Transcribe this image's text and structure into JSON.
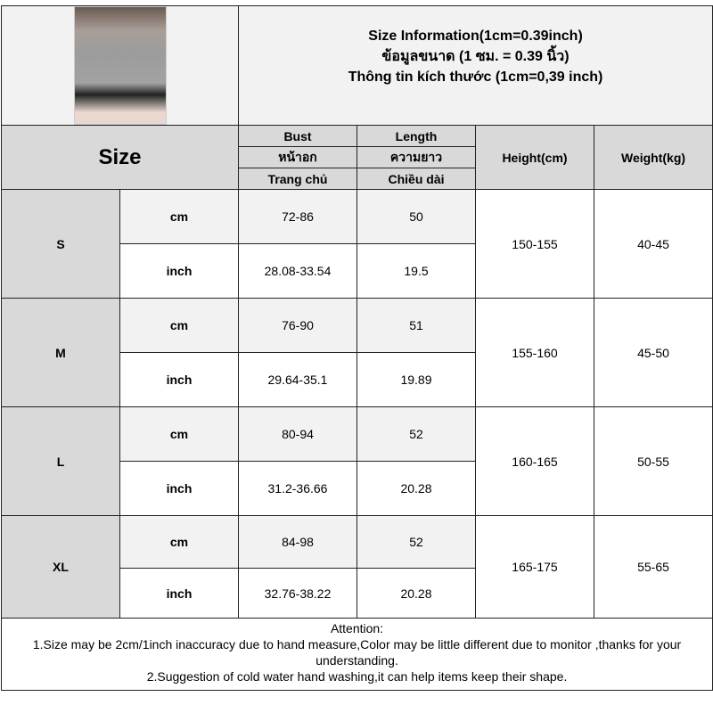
{
  "header": {
    "title_lines": [
      "Size Information(1cm=0.39inch)",
      "ข้อมูลขนาด (1 ซม. = 0.39 นิ้ว)",
      "Thông tin kích thước (1cm=0,39 inch)"
    ],
    "image": "model-photo"
  },
  "columns": {
    "size": "Size",
    "bust": [
      "Bust",
      "หน้าอก",
      "Trang chủ"
    ],
    "length": [
      "Length",
      "ความยาว",
      "Chiều dài"
    ],
    "height": "Height(cm)",
    "weight": "Weight(kg)"
  },
  "rows": [
    {
      "size": "S",
      "cm": {
        "unit": "cm",
        "bust": "72-86",
        "length": "50"
      },
      "inch": {
        "unit": "inch",
        "bust": "28.08-33.54",
        "length": "19.5"
      },
      "height": "150-155",
      "weight": "40-45"
    },
    {
      "size": "M",
      "cm": {
        "unit": "cm",
        "bust": "76-90",
        "length": "51"
      },
      "inch": {
        "unit": "inch",
        "bust": "29.64-35.1",
        "length": "19.89"
      },
      "height": "155-160",
      "weight": "45-50"
    },
    {
      "size": "L",
      "cm": {
        "unit": "cm",
        "bust": "80-94",
        "length": "52"
      },
      "inch": {
        "unit": "inch",
        "bust": "31.2-36.66",
        "length": "20.28"
      },
      "height": "160-165",
      "weight": "50-55"
    },
    {
      "size": "XL",
      "cm": {
        "unit": "cm",
        "bust": "84-98",
        "length": "52"
      },
      "inch": {
        "unit": "inch",
        "bust": "32.76-38.22",
        "length": "20.28"
      },
      "height": "165-175",
      "weight": "55-65"
    }
  ],
  "attention": {
    "title": "Attention:",
    "line1": "1.Size may be 2cm/1inch inaccuracy due to hand measure,Color may be little different due to monitor ,thanks for your understanding.",
    "line2": "2.Suggestion of cold water hand washing,it can help items keep their shape."
  }
}
